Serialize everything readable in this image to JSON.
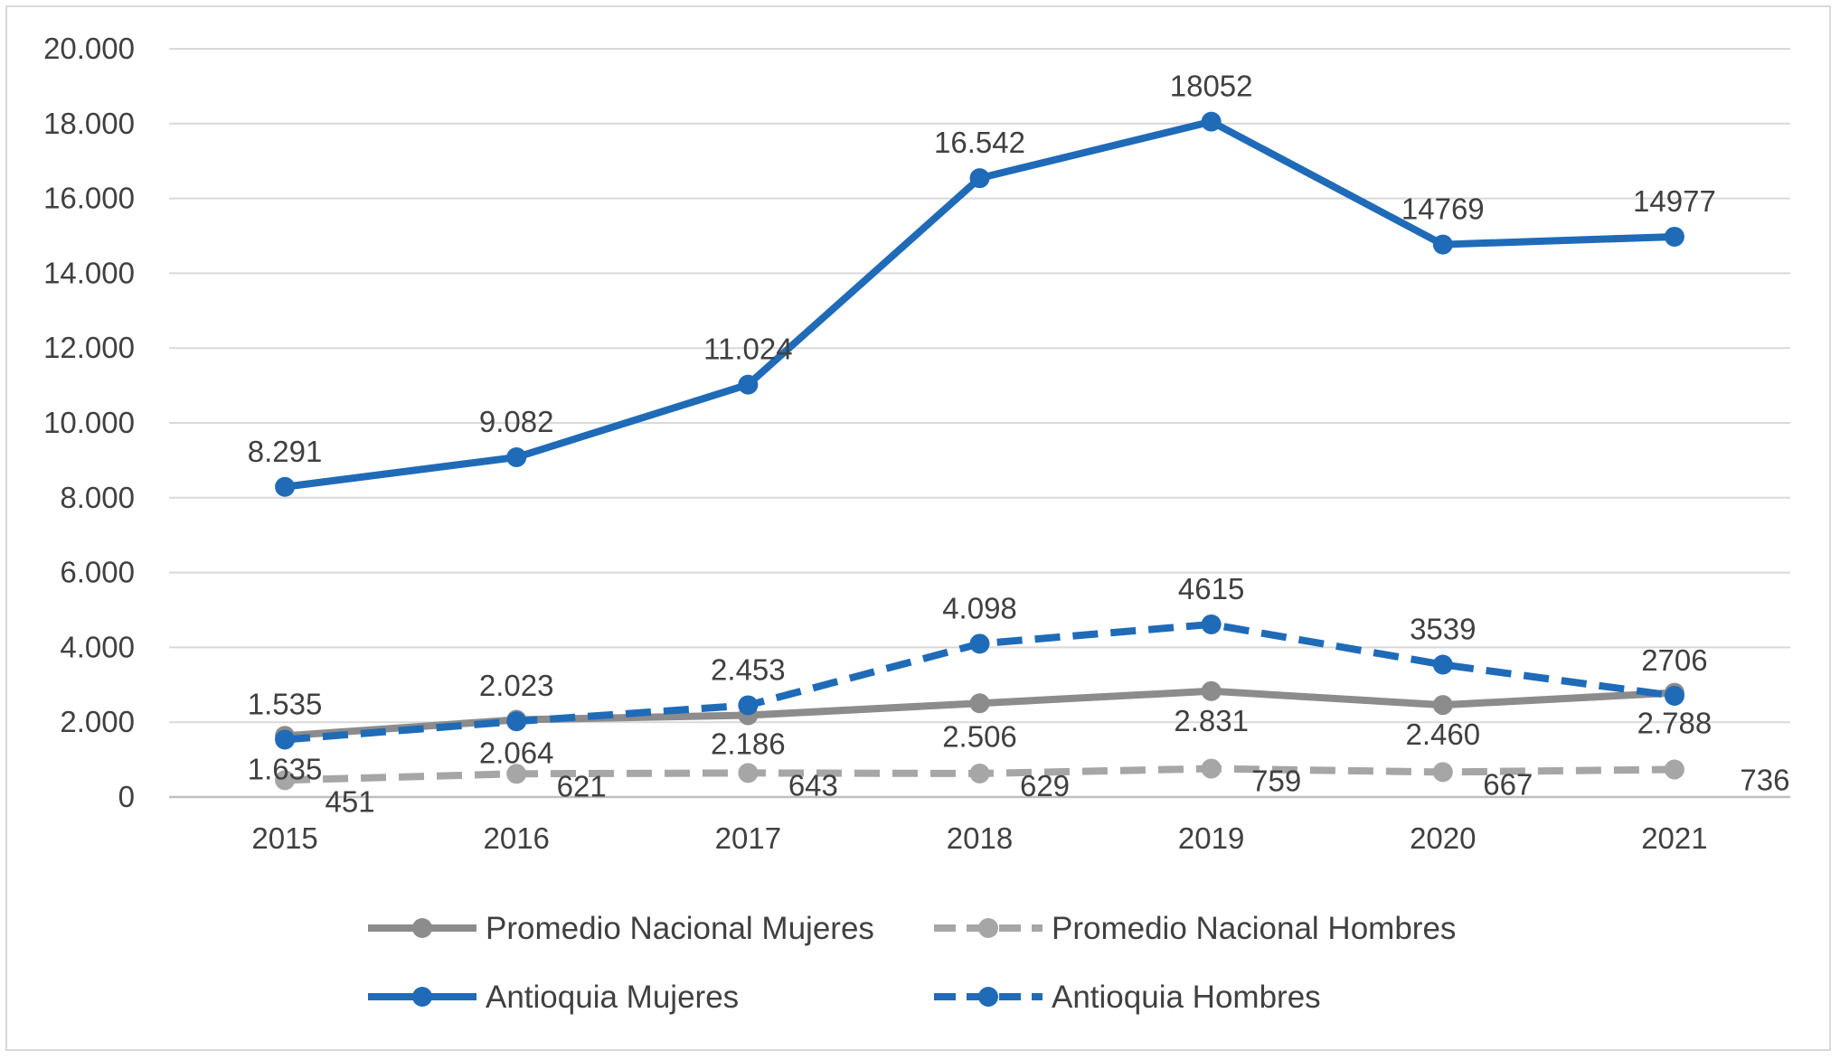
{
  "chart_data": {
    "type": "line",
    "title": "",
    "xlabel": "",
    "ylabel": "",
    "categories": [
      "2015",
      "2016",
      "2017",
      "2018",
      "2019",
      "2020",
      "2021"
    ],
    "ylim": [
      0,
      20000
    ],
    "yticks": [
      0,
      2000,
      4000,
      6000,
      8000,
      10000,
      12000,
      14000,
      16000,
      18000,
      20000
    ],
    "ytick_labels": [
      "0",
      "2.000",
      "4.000",
      "6.000",
      "8.000",
      "10.000",
      "12.000",
      "14.000",
      "16.000",
      "18.000",
      "20.000"
    ],
    "grid": true,
    "legend_position": "bottom",
    "series": [
      {
        "name": "Promedio Nacional Mujeres",
        "values": [
          1635,
          2064,
          2186,
          2506,
          2831,
          2460,
          2788
        ],
        "labels": [
          "1.635",
          "2.064",
          "2.186",
          "2.506",
          "2.831",
          "2.460",
          "2.788"
        ],
        "color": "#8c8c8c",
        "dashed": false
      },
      {
        "name": "Promedio Nacional Hombres",
        "values": [
          451,
          621,
          643,
          629,
          759,
          667,
          736
        ],
        "labels": [
          "451",
          "621",
          "643",
          "629",
          "759",
          "667",
          "736"
        ],
        "color": "#a6a6a6",
        "dashed": true
      },
      {
        "name": "Antioquia Mujeres",
        "values": [
          8291,
          9082,
          11024,
          16542,
          18052,
          14769,
          14977
        ],
        "labels": [
          "8.291",
          "9.082",
          "11.024",
          "16.542",
          "18052",
          "14769",
          "14977"
        ],
        "color": "#1f6bb8",
        "dashed": false
      },
      {
        "name": "Antioquia Hombres",
        "values": [
          1535,
          2023,
          2453,
          4098,
          4615,
          3539,
          2706
        ],
        "labels": [
          "1.535",
          "2.023",
          "2.453",
          "4.098",
          "4615",
          "3539",
          "2706"
        ],
        "color": "#1f6bb8",
        "dashed": true
      }
    ]
  }
}
